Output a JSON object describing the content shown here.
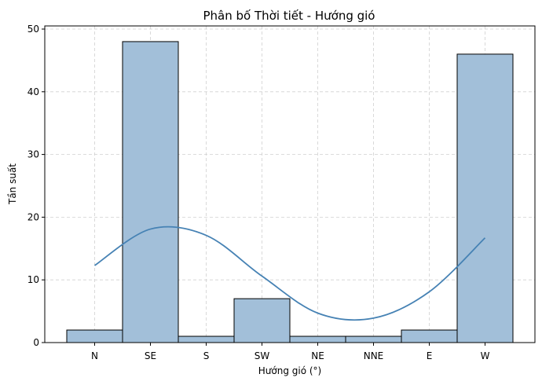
{
  "chart_data": {
    "type": "bar",
    "title": "Phân bố Thời tiết - Hướng gió",
    "xlabel": "Hướng gió (°)",
    "ylabel": "Tần suất",
    "categories": [
      "N",
      "SE",
      "S",
      "SW",
      "NE",
      "NNE",
      "E",
      "W"
    ],
    "values": [
      2,
      48,
      1,
      7,
      1,
      1,
      2,
      46
    ],
    "ylim": [
      0,
      50.5
    ],
    "yticks": [
      0,
      10,
      20,
      30,
      40,
      50
    ],
    "grid": true,
    "kde": {
      "name": "",
      "values": [
        12.3,
        18.1,
        17.1,
        10.6,
        4.7,
        3.9,
        8.1,
        16.7
      ]
    },
    "colors": {
      "bar_fill": "#a2bfd9",
      "bar_edge": "#000000",
      "kde_line": "#4682b4",
      "grid": "#d0d0d0"
    }
  }
}
